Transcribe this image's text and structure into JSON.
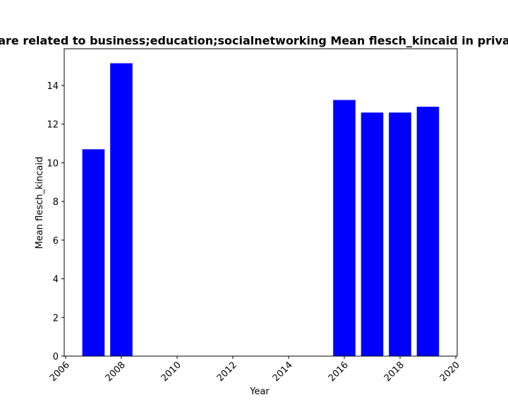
{
  "chart_data": {
    "type": "bar",
    "title": "are related to business;education;socialnetworking Mean flesch_kincaid in priva",
    "xlabel": "Year",
    "ylabel": "Mean flesch_kincaid",
    "x": [
      2007,
      2008,
      2016,
      2017,
      2018,
      2019
    ],
    "values": [
      10.7,
      15.15,
      13.25,
      12.6,
      12.6,
      12.9
    ],
    "xlim": [
      2005.95,
      2020.05
    ],
    "ylim": [
      0,
      15.9
    ],
    "xticks": [
      2006,
      2008,
      2010,
      2012,
      2014,
      2016,
      2018,
      2020
    ],
    "yticks": [
      0,
      2,
      4,
      6,
      8,
      10,
      12,
      14
    ],
    "bar_color": "#0000ff",
    "grid": false,
    "legend": "none"
  }
}
